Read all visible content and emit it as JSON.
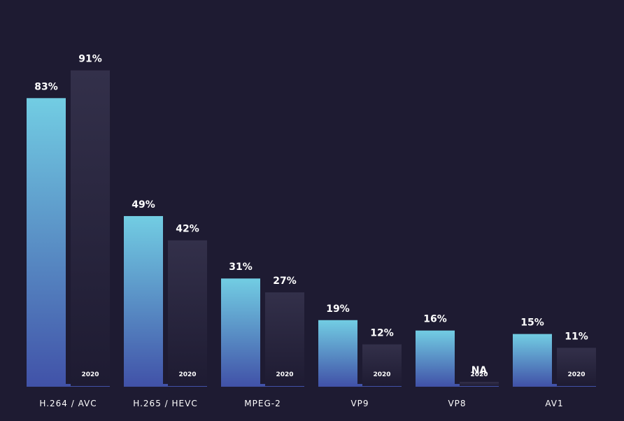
{
  "chart_data": {
    "type": "bar",
    "categories": [
      "H.264 / AVC",
      "H.265 / HEVC",
      "MPEG-2",
      "VP9",
      "VP8",
      "AV1"
    ],
    "series": [
      {
        "values": [
          83,
          49,
          31,
          19,
          16,
          15
        ],
        "labels": [
          "83%",
          "49%",
          "31%",
          "19%",
          "16%",
          "15%"
        ],
        "color_top": "#72cde3",
        "color_bottom": "#4152a8"
      },
      {
        "values": [
          91,
          42,
          27,
          12,
          null,
          11
        ],
        "labels": [
          "91%",
          "42%",
          "27%",
          "12%",
          "NA",
          "11%"
        ],
        "year_label": "2020",
        "color_top": "#33304a",
        "color_bottom": "#1e1b32"
      }
    ],
    "ylim": [
      0,
      100
    ],
    "baseline_color": "#4152a8",
    "background": "#1e1b32"
  }
}
